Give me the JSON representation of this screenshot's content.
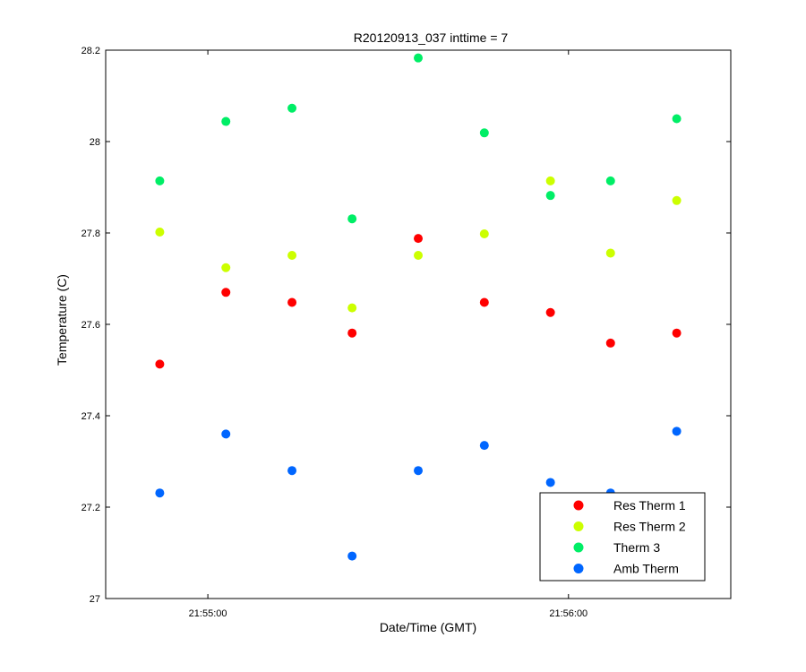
{
  "chart_data": {
    "type": "scatter",
    "title": "R20120913_037 inttime = 7",
    "xlabel": "Date/Time (GMT)",
    "ylabel": "Temperature (C)",
    "x_unit": "time_of_day",
    "xlim": [
      "21:54:43",
      "21:56:27"
    ],
    "ylim": [
      27,
      28.2
    ],
    "x_ticks": [
      "21:55:00",
      "21:56:00"
    ],
    "y_ticks": [
      27,
      27.2,
      27.4,
      27.6,
      27.8,
      28,
      28.2
    ],
    "y_tick_labels": [
      "27",
      "27.2",
      "27.4",
      "27.6",
      "27.8",
      "28",
      "28.2"
    ],
    "grid": false,
    "legend_position": "bottom-right",
    "x": [
      "21:54:52",
      "21:55:03",
      "21:55:14",
      "21:55:24",
      "21:55:35",
      "21:55:46",
      "21:55:57",
      "21:56:07",
      "21:56:18"
    ],
    "series": [
      {
        "name": "Res Therm 1",
        "color": "#ff0000",
        "points": [
          [
            "21:54:52",
            27.513
          ],
          [
            "21:55:03",
            27.67
          ],
          [
            "21:55:14",
            27.648
          ],
          [
            "21:55:24",
            27.581
          ],
          [
            "21:55:35",
            27.788
          ],
          [
            "21:55:46",
            27.648
          ],
          [
            "21:55:57",
            27.626
          ],
          [
            "21:56:07",
            27.559
          ],
          [
            "21:56:18",
            27.581
          ]
        ]
      },
      {
        "name": "Res Therm 2",
        "color": "#ccff00",
        "points": [
          [
            "21:54:52",
            27.802
          ],
          [
            "21:55:03",
            27.724
          ],
          [
            "21:55:14",
            27.751
          ],
          [
            "21:55:24",
            27.636
          ],
          [
            "21:55:35",
            27.751
          ],
          [
            "21:55:46",
            27.798
          ],
          [
            "21:55:57",
            27.914
          ],
          [
            "21:56:07",
            27.756
          ],
          [
            "21:56:18",
            27.871
          ]
        ]
      },
      {
        "name": "Therm 3",
        "color": "#00ee66",
        "points": [
          [
            "21:54:52",
            27.914
          ],
          [
            "21:55:03",
            28.044
          ],
          [
            "21:55:14",
            28.073
          ],
          [
            "21:55:24",
            27.831
          ],
          [
            "21:55:35",
            28.183
          ],
          [
            "21:55:46",
            28.019
          ],
          [
            "21:55:57",
            27.882
          ],
          [
            "21:56:07",
            27.914
          ],
          [
            "21:56:18",
            28.05
          ]
        ]
      },
      {
        "name": "Amb Therm",
        "color": "#0066ff",
        "points": [
          [
            "21:54:52",
            27.231
          ],
          [
            "21:55:03",
            27.36
          ],
          [
            "21:55:14",
            27.28
          ],
          [
            "21:55:24",
            27.093
          ],
          [
            "21:55:35",
            27.28
          ],
          [
            "21:55:46",
            27.335
          ],
          [
            "21:55:57",
            27.254
          ],
          [
            "21:56:07",
            27.231
          ],
          [
            "21:56:18",
            27.366
          ]
        ]
      }
    ]
  }
}
